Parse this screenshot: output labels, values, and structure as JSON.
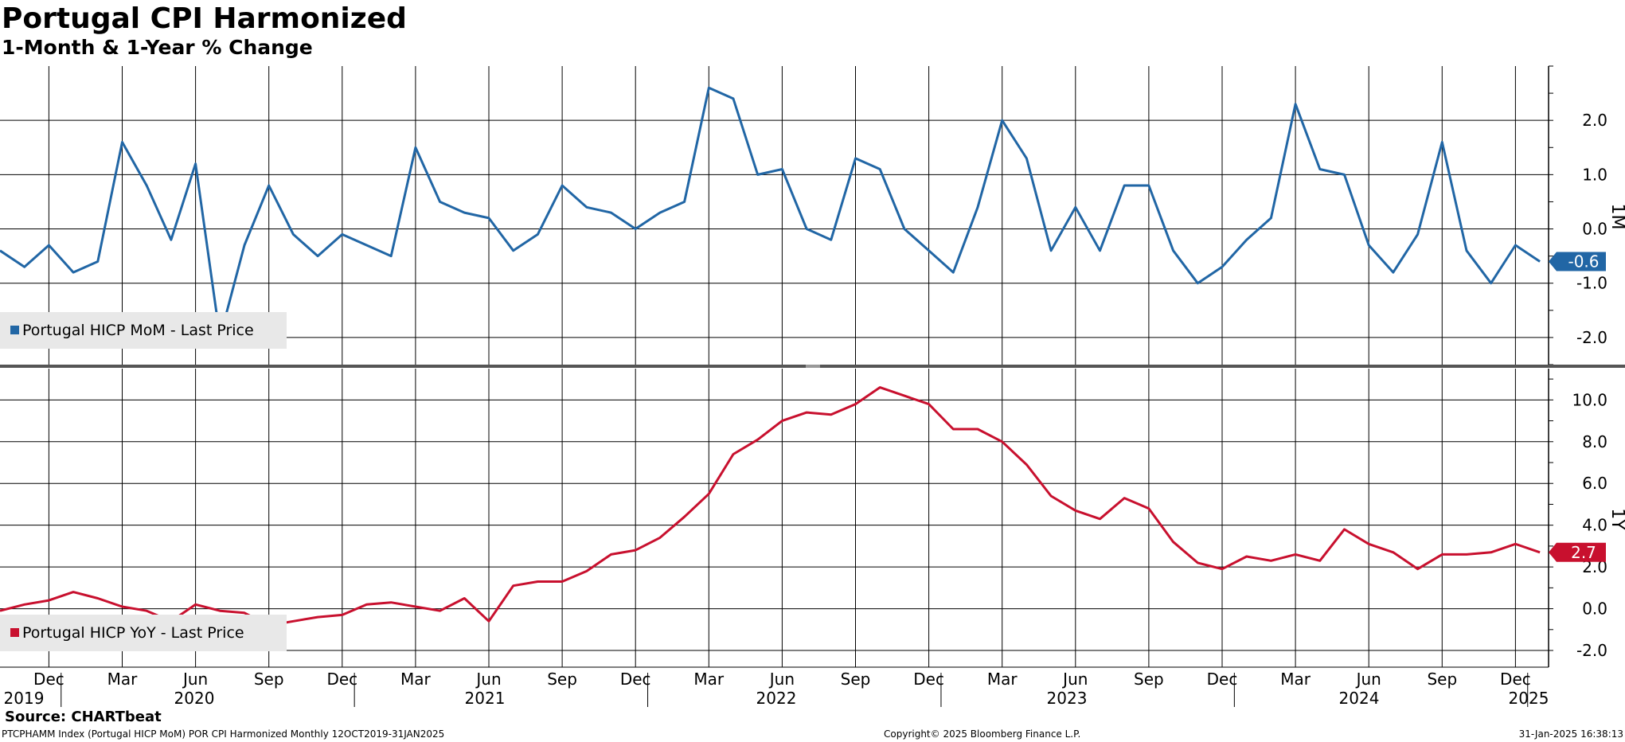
{
  "title": "Portugal CPI Harmonized",
  "subtitle": "1-Month & 1-Year % Change",
  "source": "Source: CHARTbeat",
  "footer": {
    "left": "PTCPHAMM Index (Portugal HICP MoM) POR CPI Harmonized  Monthly 12OCT2019-31JAN2025",
    "center": "Copyright© 2025 Bloomberg Finance L.P.",
    "right": "31-Jan-2025 16:38:13"
  },
  "colors": {
    "mom": "#2166a5",
    "yoy": "#c8102e",
    "grid": "#000000",
    "divider": "#555555",
    "legend_bg": "#e8e8e8"
  },
  "x_axis": {
    "month_ticks": [
      "Dec",
      "Mar",
      "Jun",
      "Sep",
      "Dec",
      "Mar",
      "Jun",
      "Sep",
      "Dec",
      "Mar",
      "Jun",
      "Sep",
      "Dec",
      "Mar",
      "Jun",
      "Sep",
      "Dec",
      "Mar",
      "Jun",
      "Sep",
      "Dec"
    ],
    "year_labels": [
      "2019",
      "2020",
      "2021",
      "2022",
      "2023",
      "2024",
      "2025"
    ]
  },
  "chart_data": [
    {
      "type": "line",
      "panel_label": "1M",
      "legend": "Portugal HICP MoM - Last Price",
      "ylim": [
        -2.5,
        3.0
      ],
      "yticks": [
        "-2.0",
        "-1.0",
        "0.0",
        "1.0",
        "2.0"
      ],
      "last_value_label": "-0.6",
      "series": [
        {
          "name": "Portugal HICP MoM - Last Price",
          "x": [
            "2019-10",
            "2019-11",
            "2019-12",
            "2020-01",
            "2020-02",
            "2020-03",
            "2020-04",
            "2020-05",
            "2020-06",
            "2020-07",
            "2020-08",
            "2020-09",
            "2020-10",
            "2020-11",
            "2020-12",
            "2021-01",
            "2021-02",
            "2021-03",
            "2021-04",
            "2021-05",
            "2021-06",
            "2021-07",
            "2021-08",
            "2021-09",
            "2021-10",
            "2021-11",
            "2021-12",
            "2022-01",
            "2022-02",
            "2022-03",
            "2022-04",
            "2022-05",
            "2022-06",
            "2022-07",
            "2022-08",
            "2022-09",
            "2022-10",
            "2022-11",
            "2022-12",
            "2023-01",
            "2023-02",
            "2023-03",
            "2023-04",
            "2023-05",
            "2023-06",
            "2023-07",
            "2023-08",
            "2023-09",
            "2023-10",
            "2023-11",
            "2023-12",
            "2024-01",
            "2024-02",
            "2024-03",
            "2024-04",
            "2024-05",
            "2024-06",
            "2024-07",
            "2024-08",
            "2024-09",
            "2024-10",
            "2024-11",
            "2024-12",
            "2025-01"
          ],
          "values": [
            -0.4,
            -0.7,
            -0.3,
            -0.8,
            -0.6,
            1.6,
            0.8,
            -0.2,
            1.2,
            -2.0,
            -0.3,
            0.8,
            -0.1,
            -0.5,
            -0.1,
            -0.3,
            -0.5,
            1.5,
            0.5,
            0.3,
            0.2,
            -0.4,
            -0.1,
            0.8,
            0.4,
            0.3,
            0.0,
            0.3,
            0.5,
            2.6,
            2.4,
            1.0,
            1.1,
            0.0,
            -0.2,
            1.3,
            1.1,
            0.0,
            -0.4,
            -0.8,
            0.4,
            2.0,
            1.3,
            -0.4,
            0.4,
            -0.4,
            0.8,
            0.8,
            -0.4,
            -1.0,
            -0.7,
            -0.2,
            0.2,
            2.3,
            1.1,
            1.0,
            -0.3,
            -0.8,
            -0.1,
            1.6,
            -0.4,
            -1.0,
            -0.3,
            -0.6
          ]
        }
      ]
    },
    {
      "type": "line",
      "panel_label": "1Y",
      "legend": "Portugal HICP YoY - Last Price",
      "ylim": [
        -2.8,
        11.5
      ],
      "yticks": [
        "-2.0",
        "0.0",
        "2.0",
        "4.0",
        "6.0",
        "8.0",
        "10.0"
      ],
      "last_value_label": "2.7",
      "series": [
        {
          "name": "Portugal HICP YoY - Last Price",
          "x": [
            "2019-10",
            "2019-11",
            "2019-12",
            "2020-01",
            "2020-02",
            "2020-03",
            "2020-04",
            "2020-05",
            "2020-06",
            "2020-07",
            "2020-08",
            "2020-09",
            "2020-10",
            "2020-11",
            "2020-12",
            "2021-01",
            "2021-02",
            "2021-03",
            "2021-04",
            "2021-05",
            "2021-06",
            "2021-07",
            "2021-08",
            "2021-09",
            "2021-10",
            "2021-11",
            "2021-12",
            "2022-01",
            "2022-02",
            "2022-03",
            "2022-04",
            "2022-05",
            "2022-06",
            "2022-07",
            "2022-08",
            "2022-09",
            "2022-10",
            "2022-11",
            "2022-12",
            "2023-01",
            "2023-02",
            "2023-03",
            "2023-04",
            "2023-05",
            "2023-06",
            "2023-07",
            "2023-08",
            "2023-09",
            "2023-10",
            "2023-11",
            "2023-12",
            "2024-01",
            "2024-02",
            "2024-03",
            "2024-04",
            "2024-05",
            "2024-06",
            "2024-07",
            "2024-08",
            "2024-09",
            "2024-10",
            "2024-11",
            "2024-12",
            "2025-01"
          ],
          "values": [
            -0.1,
            0.2,
            0.4,
            0.8,
            0.5,
            0.1,
            -0.1,
            -0.6,
            0.2,
            -0.1,
            -0.2,
            -0.8,
            -0.6,
            -0.4,
            -0.3,
            0.2,
            0.3,
            0.1,
            -0.1,
            0.5,
            -0.6,
            1.1,
            1.3,
            1.3,
            1.8,
            2.6,
            2.8,
            3.4,
            4.4,
            5.5,
            7.4,
            8.1,
            9.0,
            9.4,
            9.3,
            9.8,
            10.6,
            10.2,
            9.8,
            8.6,
            8.6,
            8.0,
            6.9,
            5.4,
            4.7,
            4.3,
            5.3,
            4.8,
            3.2,
            2.2,
            1.9,
            2.5,
            2.3,
            2.6,
            2.3,
            3.8,
            3.1,
            2.7,
            1.9,
            2.6,
            2.6,
            2.7,
            3.1,
            2.7
          ]
        }
      ]
    }
  ]
}
